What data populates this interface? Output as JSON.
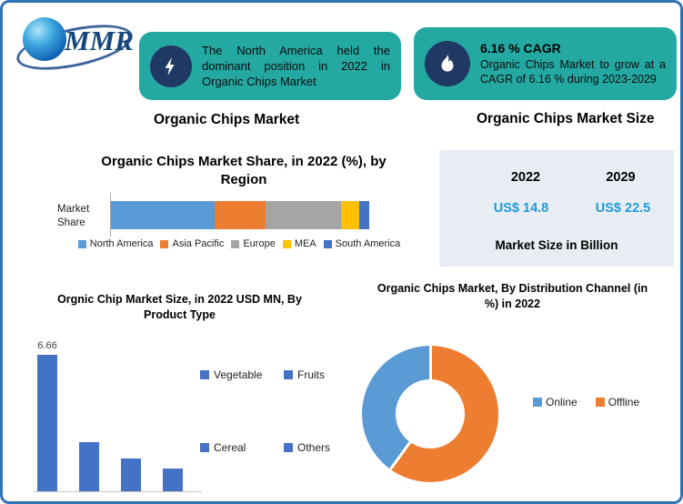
{
  "frame": {
    "border_color": "#2e74b5",
    "background": "#ffffff"
  },
  "logo": {
    "brand": "MMR"
  },
  "callout_left": {
    "icon": "lightning-icon",
    "text": "The North America held the dominant position in 2022 in Organic Chips Market"
  },
  "callout_right": {
    "icon": "flame-icon",
    "title": "6.16 % CAGR",
    "text": "Organic Chips Market to grow at a CAGR of 6.16 % during 2023-2029"
  },
  "section_titles": {
    "left": "Organic Chips Market",
    "right": "Organic Chips Market Size"
  },
  "size_panel": {
    "background": "#e7edf3",
    "year_left": "2022",
    "year_right": "2029",
    "value_left": "US$ 14.8",
    "value_right": "US$ 22.5",
    "value_color": "#1f9ad7",
    "caption": "Market Size in Billion"
  },
  "chart_data": [
    {
      "type": "bar",
      "subtype": "stacked-horizontal",
      "title": "Organic Chips Market Share, in 2022 (%), by Region",
      "axis_label": "Market Share",
      "unit": "%",
      "categories": [
        "Market Share"
      ],
      "series": [
        {
          "name": "North America",
          "values": [
            40
          ],
          "color": "#5b9bd5"
        },
        {
          "name": "Asia Pacific",
          "values": [
            20
          ],
          "color": "#ed7d31"
        },
        {
          "name": "Europe",
          "values": [
            29
          ],
          "color": "#a5a5a5"
        },
        {
          "name": "MEA",
          "values": [
            7
          ],
          "color": "#ffc000"
        },
        {
          "name": "South America",
          "values": [
            4
          ],
          "color": "#4472c4"
        }
      ],
      "legend_position": "bottom"
    },
    {
      "type": "bar",
      "title": "Orgnic Chip Market Size, in 2022 USD MN, By Product Type",
      "categories": [
        "Vegetable",
        "Fruits",
        "Cereal",
        "Others"
      ],
      "values": [
        6.66,
        2.4,
        1.6,
        1.1
      ],
      "bar_labels": [
        "6.66",
        "",
        "",
        ""
      ],
      "bar_color": "#4472c4",
      "ylim": [
        0,
        7
      ],
      "legend_position": "right"
    },
    {
      "type": "pie",
      "subtype": "donut",
      "title": "Organic Chips Market, By Distribution Channel (in %) in 2022",
      "categories": [
        "Online",
        "Offline"
      ],
      "values": [
        40,
        60
      ],
      "colors": [
        "#5b9bd5",
        "#ed7d31"
      ],
      "start_angle": 216,
      "legend_position": "right"
    }
  ]
}
